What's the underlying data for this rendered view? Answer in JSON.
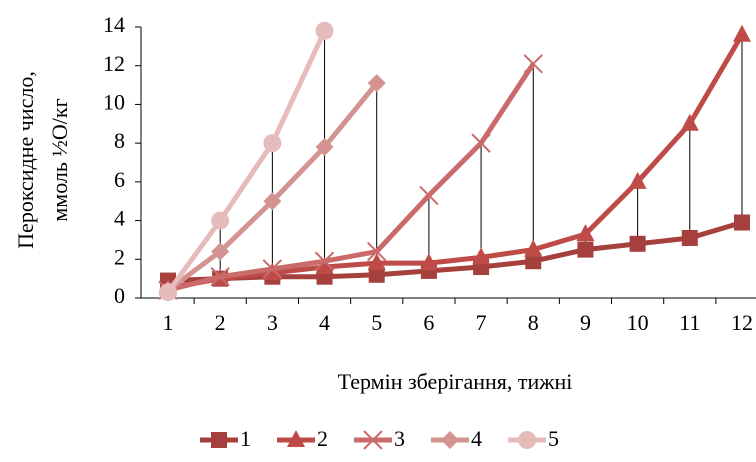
{
  "chart_data": {
    "type": "line",
    "ylabel": [
      "Пероксидне число,",
      "ммоль ½O/кг"
    ],
    "xlabel": "Термін зберігання, тижні",
    "categories": [
      "1",
      "2",
      "3",
      "4",
      "5",
      "6",
      "7",
      "8",
      "9",
      "10",
      "11",
      "12"
    ],
    "ylim": [
      0,
      14
    ],
    "yticks": [
      0,
      2,
      4,
      6,
      8,
      10,
      12,
      14
    ],
    "high_low_lines": true,
    "legend": "bottom",
    "series": [
      {
        "name": "1",
        "color": "#a5403d",
        "marker": "square",
        "values": [
          0.9,
          1.0,
          1.1,
          1.1,
          1.2,
          1.4,
          1.6,
          1.9,
          2.5,
          2.8,
          3.1,
          3.9
        ]
      },
      {
        "name": "2",
        "color": "#be4b48",
        "marker": "triangle",
        "values": [
          0.5,
          1.0,
          1.3,
          1.6,
          1.8,
          1.8,
          2.1,
          2.5,
          3.3,
          6.0,
          9.0,
          13.6
        ]
      },
      {
        "name": "3",
        "color": "#cb6a6a",
        "marker": "x",
        "values": [
          0.4,
          1.1,
          1.5,
          1.9,
          2.4,
          5.3,
          8.0,
          12.1,
          null,
          null,
          null,
          null
        ]
      },
      {
        "name": "4",
        "color": "#d39391",
        "marker": "diamond",
        "values": [
          0.4,
          2.4,
          5.0,
          7.8,
          11.1,
          null,
          null,
          null,
          null,
          null,
          null,
          null
        ]
      },
      {
        "name": "5",
        "color": "#e5bcbb",
        "marker": "circle",
        "values": [
          0.3,
          4.0,
          8.0,
          13.8,
          null,
          null,
          null,
          null,
          null,
          null,
          null,
          null
        ]
      }
    ]
  }
}
